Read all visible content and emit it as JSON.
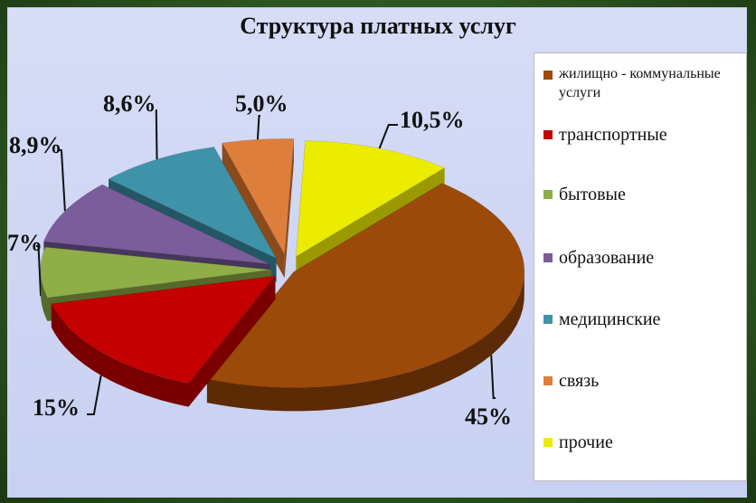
{
  "chart_data": {
    "type": "pie",
    "title": "Структура платных услуг",
    "slices": [
      {
        "label": "жилищно - коммунальные услуги",
        "value": 45,
        "value_label": "45%",
        "color": "#9b4a0a",
        "side": "#5c2a04"
      },
      {
        "label": "транспортные",
        "value": 15,
        "value_label": "15%",
        "color": "#c40000",
        "side": "#7a0000"
      },
      {
        "label": "бытовые",
        "value": 7,
        "value_label": "7%",
        "color": "#8fae48",
        "side": "#56692a"
      },
      {
        "label": "образование",
        "value": 8.9,
        "value_label": "8,9%",
        "color": "#7a5d9a",
        "side": "#47365c"
      },
      {
        "label": "медицинские",
        "value": 8.6,
        "value_label": "8,6%",
        "color": "#3f93a8",
        "side": "#235765"
      },
      {
        "label": "связь",
        "value": 5.0,
        "value_label": "5,0%",
        "color": "#dd7e3c",
        "side": "#8a4a1c"
      },
      {
        "label": "прочие",
        "value": 10.5,
        "value_label": "10,5%",
        "color": "#ecec00",
        "side": "#9a9a00"
      }
    ],
    "legend_position": "right",
    "exploded": true,
    "style": "3d"
  }
}
